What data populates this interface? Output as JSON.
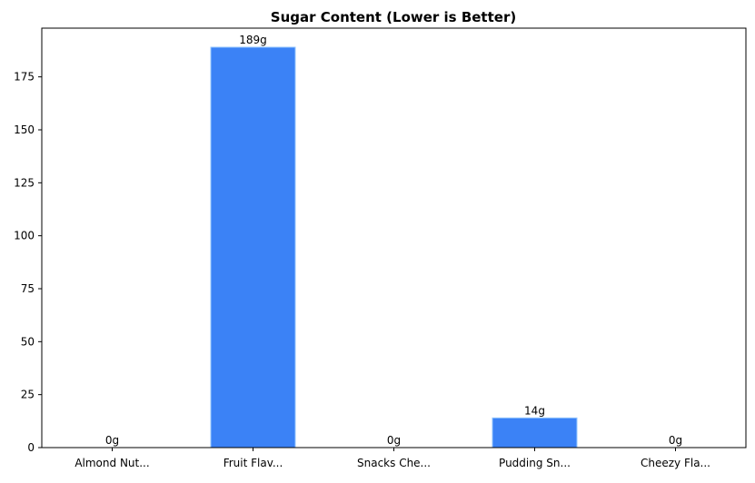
{
  "chart_data": {
    "type": "bar",
    "title": "Sugar Content (Lower is Better)",
    "xlabel": "",
    "ylabel": "",
    "categories": [
      "Almond Nut...",
      "Fruit Flav...",
      "Snacks Che...",
      "Pudding Sn...",
      "Cheezy Fla..."
    ],
    "values": [
      0,
      189,
      0,
      14,
      0
    ],
    "value_labels": [
      "0g",
      "189g",
      "0g",
      "14g",
      "0g"
    ],
    "ylim": [
      0,
      198
    ],
    "yticks": [
      0,
      25,
      50,
      75,
      100,
      125,
      150,
      175
    ],
    "grid": false,
    "legend": "none",
    "bar_color": "#3b82f6",
    "bar_edge_color": "#93c5fd"
  }
}
